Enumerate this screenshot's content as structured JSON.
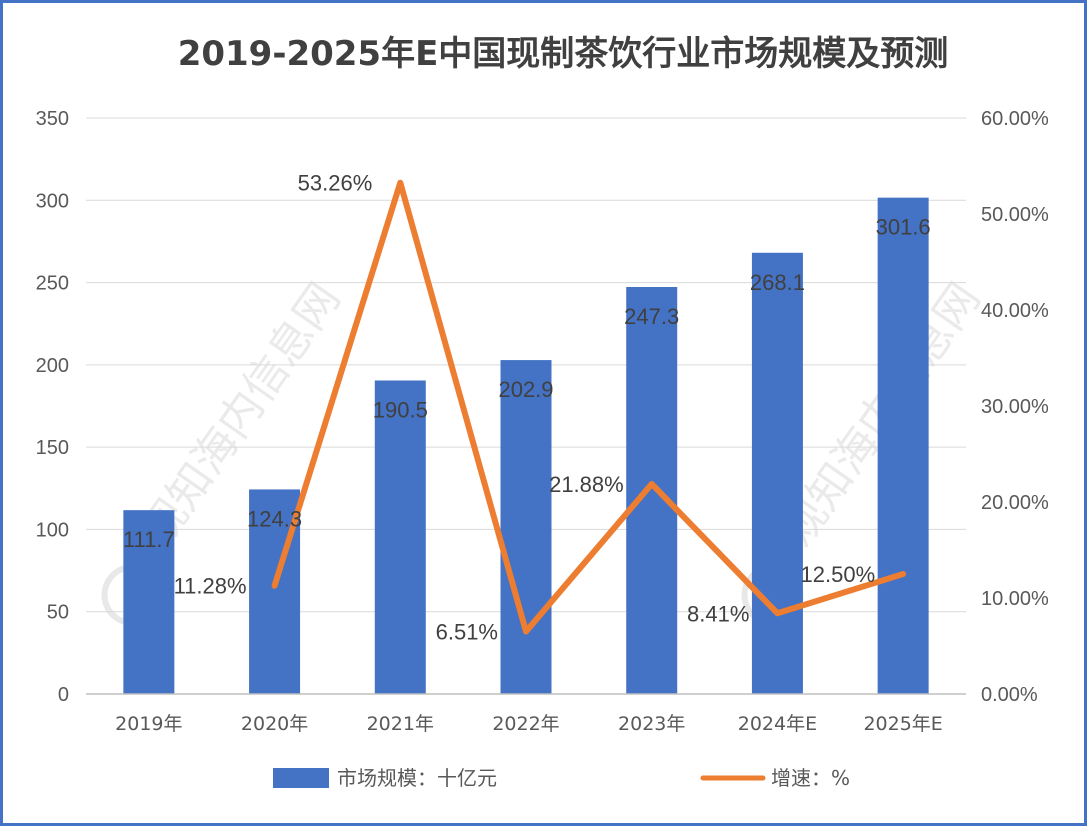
{
  "chart_data": {
    "type": "bar",
    "title": "2019-2025年E中国现制茶饮行业市场规模及预测",
    "categories": [
      "2019年",
      "2020年",
      "2021年",
      "2022年",
      "2023年",
      "2024年E",
      "2025年E"
    ],
    "series": [
      {
        "name": "市场规模：十亿元",
        "type": "bar",
        "axis": "left",
        "color": "#4472c4",
        "values": [
          111.7,
          124.3,
          190.5,
          202.9,
          247.3,
          268.1,
          301.6
        ],
        "labels": [
          "111.7",
          "124.3",
          "190.5",
          "202.9",
          "247.3",
          "268.1",
          "301.6"
        ]
      },
      {
        "name": "增速：%",
        "type": "line",
        "axis": "right",
        "color": "#ed7d31",
        "values": [
          null,
          11.28,
          53.26,
          6.51,
          21.88,
          8.41,
          12.5
        ],
        "labels": [
          "",
          "11.28%",
          "53.26%",
          "6.51%",
          "21.88%",
          "8.41%",
          "12.50%"
        ]
      }
    ],
    "y_left": {
      "min": 0,
      "max": 350,
      "step": 50,
      "ticks": [
        "0",
        "50",
        "100",
        "150",
        "200",
        "250",
        "300",
        "350"
      ]
    },
    "y_right": {
      "min": 0,
      "max": 60,
      "step": 10,
      "ticks": [
        "0.00%",
        "10.00%",
        "20.00%",
        "30.00%",
        "40.00%",
        "50.00%",
        "60.00%"
      ]
    },
    "grid": "horizontal",
    "legend": "bottom",
    "watermark": "观知海内信息网"
  }
}
